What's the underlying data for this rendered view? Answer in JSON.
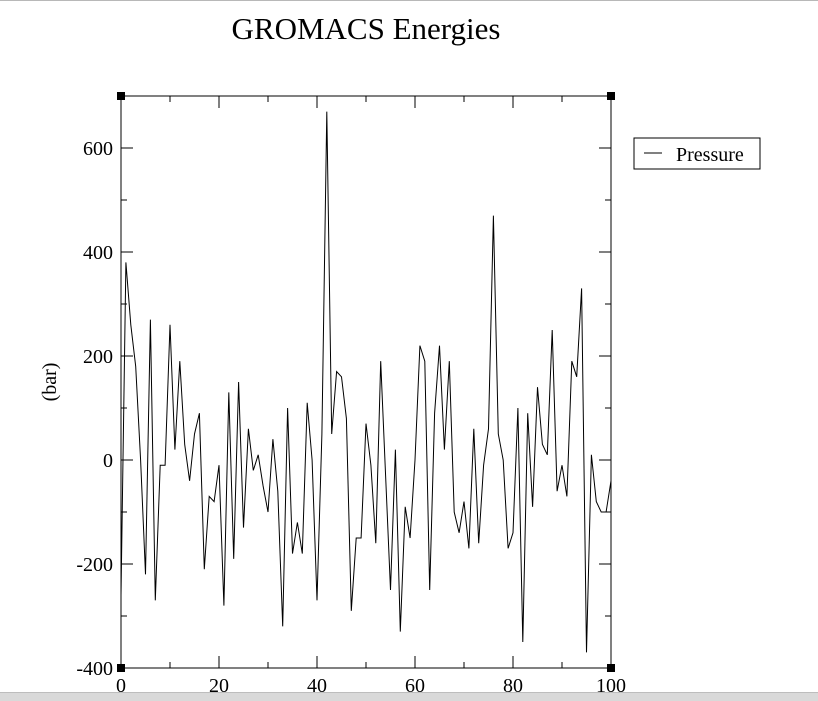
{
  "chart_data": {
    "type": "line",
    "title": "GROMACS Energies",
    "xlabel": "",
    "ylabel": "(bar)",
    "xlim": [
      0,
      100
    ],
    "ylim": [
      -400,
      700
    ],
    "xticks": [
      0,
      20,
      40,
      60,
      80,
      100
    ],
    "yticks": [
      -400,
      -200,
      0,
      200,
      400,
      600
    ],
    "x_minor_step": 10,
    "y_minor_step": 100,
    "grid": false,
    "legend_position": "right",
    "line_color": "#000000",
    "series": [
      {
        "name": "Pressure",
        "x": [
          0,
          1,
          2,
          3,
          4,
          5,
          6,
          7,
          8,
          9,
          10,
          11,
          12,
          13,
          14,
          15,
          16,
          17,
          18,
          19,
          20,
          21,
          22,
          23,
          24,
          25,
          26,
          27,
          28,
          29,
          30,
          31,
          32,
          33,
          34,
          35,
          36,
          37,
          38,
          39,
          40,
          41,
          42,
          43,
          44,
          45,
          46,
          47,
          48,
          49,
          50,
          51,
          52,
          53,
          54,
          55,
          56,
          57,
          58,
          59,
          60,
          61,
          62,
          63,
          64,
          65,
          66,
          67,
          68,
          69,
          70,
          71,
          72,
          73,
          74,
          75,
          76,
          77,
          78,
          79,
          80,
          81,
          82,
          83,
          84,
          85,
          86,
          87,
          88,
          89,
          90,
          91,
          92,
          93,
          94,
          95,
          96,
          97,
          98,
          99,
          100
        ],
        "values": [
          -260,
          380,
          260,
          180,
          0,
          -220,
          270,
          -270,
          -10,
          -10,
          260,
          20,
          190,
          30,
          -40,
          50,
          90,
          -210,
          -70,
          -80,
          -10,
          -280,
          130,
          -190,
          150,
          -130,
          60,
          -20,
          10,
          -50,
          -100,
          40,
          -60,
          -320,
          100,
          -180,
          -120,
          -180,
          110,
          0,
          -270,
          50,
          670,
          50,
          170,
          160,
          80,
          -290,
          -150,
          -150,
          70,
          -10,
          -160,
          190,
          -30,
          -250,
          20,
          -330,
          -90,
          -150,
          0,
          220,
          190,
          -250,
          90,
          220,
          20,
          190,
          -100,
          -140,
          -80,
          -170,
          60,
          -160,
          -10,
          60,
          470,
          50,
          0,
          -170,
          -140,
          100,
          -350,
          90,
          -90,
          140,
          30,
          10,
          250,
          -60,
          -10,
          -70,
          190,
          160,
          330,
          -370,
          10,
          -80,
          -100,
          -100,
          -40
        ]
      }
    ]
  }
}
